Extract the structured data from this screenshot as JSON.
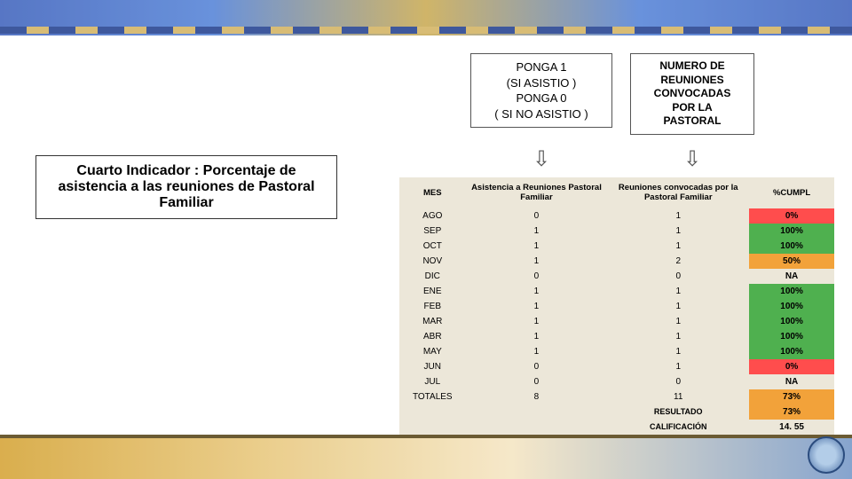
{
  "box_ponga": {
    "line1": "PONGA  1",
    "line2": "(SI ASISTIO )",
    "line3": "PONGA 0",
    "line4": "( SI NO ASISTIO )"
  },
  "box_numero": {
    "line1": "NUMERO DE",
    "line2": "REUNIONES",
    "line3": "CONVOCADAS",
    "line4": "POR  LA",
    "line5": "PASTORAL"
  },
  "indicator_title": "Cuarto Indicador : Porcentaje de asistencia a las reuniones de Pastoral Familiar",
  "table": {
    "headers": {
      "mes": "MES",
      "asist": "Asistencia a Reuniones Pastoral Familiar",
      "conv": "Reuniones convocadas por la Pastoral Familiar",
      "cumpl": "%CUMPL"
    },
    "rows": [
      {
        "mes": "AGO",
        "asist": "0",
        "conv": "1",
        "pct": "0%",
        "color": "#ff4d4d"
      },
      {
        "mes": "SEP",
        "asist": "1",
        "conv": "1",
        "pct": "100%",
        "color": "#4fb04f"
      },
      {
        "mes": "OCT",
        "asist": "1",
        "conv": "1",
        "pct": "100%",
        "color": "#4fb04f"
      },
      {
        "mes": "NOV",
        "asist": "1",
        "conv": "2",
        "pct": "50%",
        "color": "#f2a23a"
      },
      {
        "mes": "DIC",
        "asist": "0",
        "conv": "0",
        "pct": "NA",
        "color": "#ece7d9"
      },
      {
        "mes": "ENE",
        "asist": "1",
        "conv": "1",
        "pct": "100%",
        "color": "#4fb04f"
      },
      {
        "mes": "FEB",
        "asist": "1",
        "conv": "1",
        "pct": "100%",
        "color": "#4fb04f"
      },
      {
        "mes": "MAR",
        "asist": "1",
        "conv": "1",
        "pct": "100%",
        "color": "#4fb04f"
      },
      {
        "mes": "ABR",
        "asist": "1",
        "conv": "1",
        "pct": "100%",
        "color": "#4fb04f"
      },
      {
        "mes": "MAY",
        "asist": "1",
        "conv": "1",
        "pct": "100%",
        "color": "#4fb04f"
      },
      {
        "mes": "JUN",
        "asist": "0",
        "conv": "1",
        "pct": "0%",
        "color": "#ff4d4d"
      },
      {
        "mes": "JUL",
        "asist": "0",
        "conv": "0",
        "pct": "NA",
        "color": "#ece7d9"
      }
    ],
    "totals": {
      "mes": "TOTALES",
      "asist": "8",
      "conv": "11",
      "pct": "73%",
      "color": "#f2a23a"
    },
    "resultado": {
      "label": "RESULTADO",
      "value": "73%",
      "color": "#f2a23a"
    },
    "calificacion": {
      "label": "CALIFICACIÓN",
      "value": "14. 55",
      "color": "#ece7d9"
    }
  },
  "colors": {
    "table_bg": "#ece7d9",
    "green": "#4fb04f",
    "red": "#ff4d4d",
    "orange": "#f2a23a"
  }
}
